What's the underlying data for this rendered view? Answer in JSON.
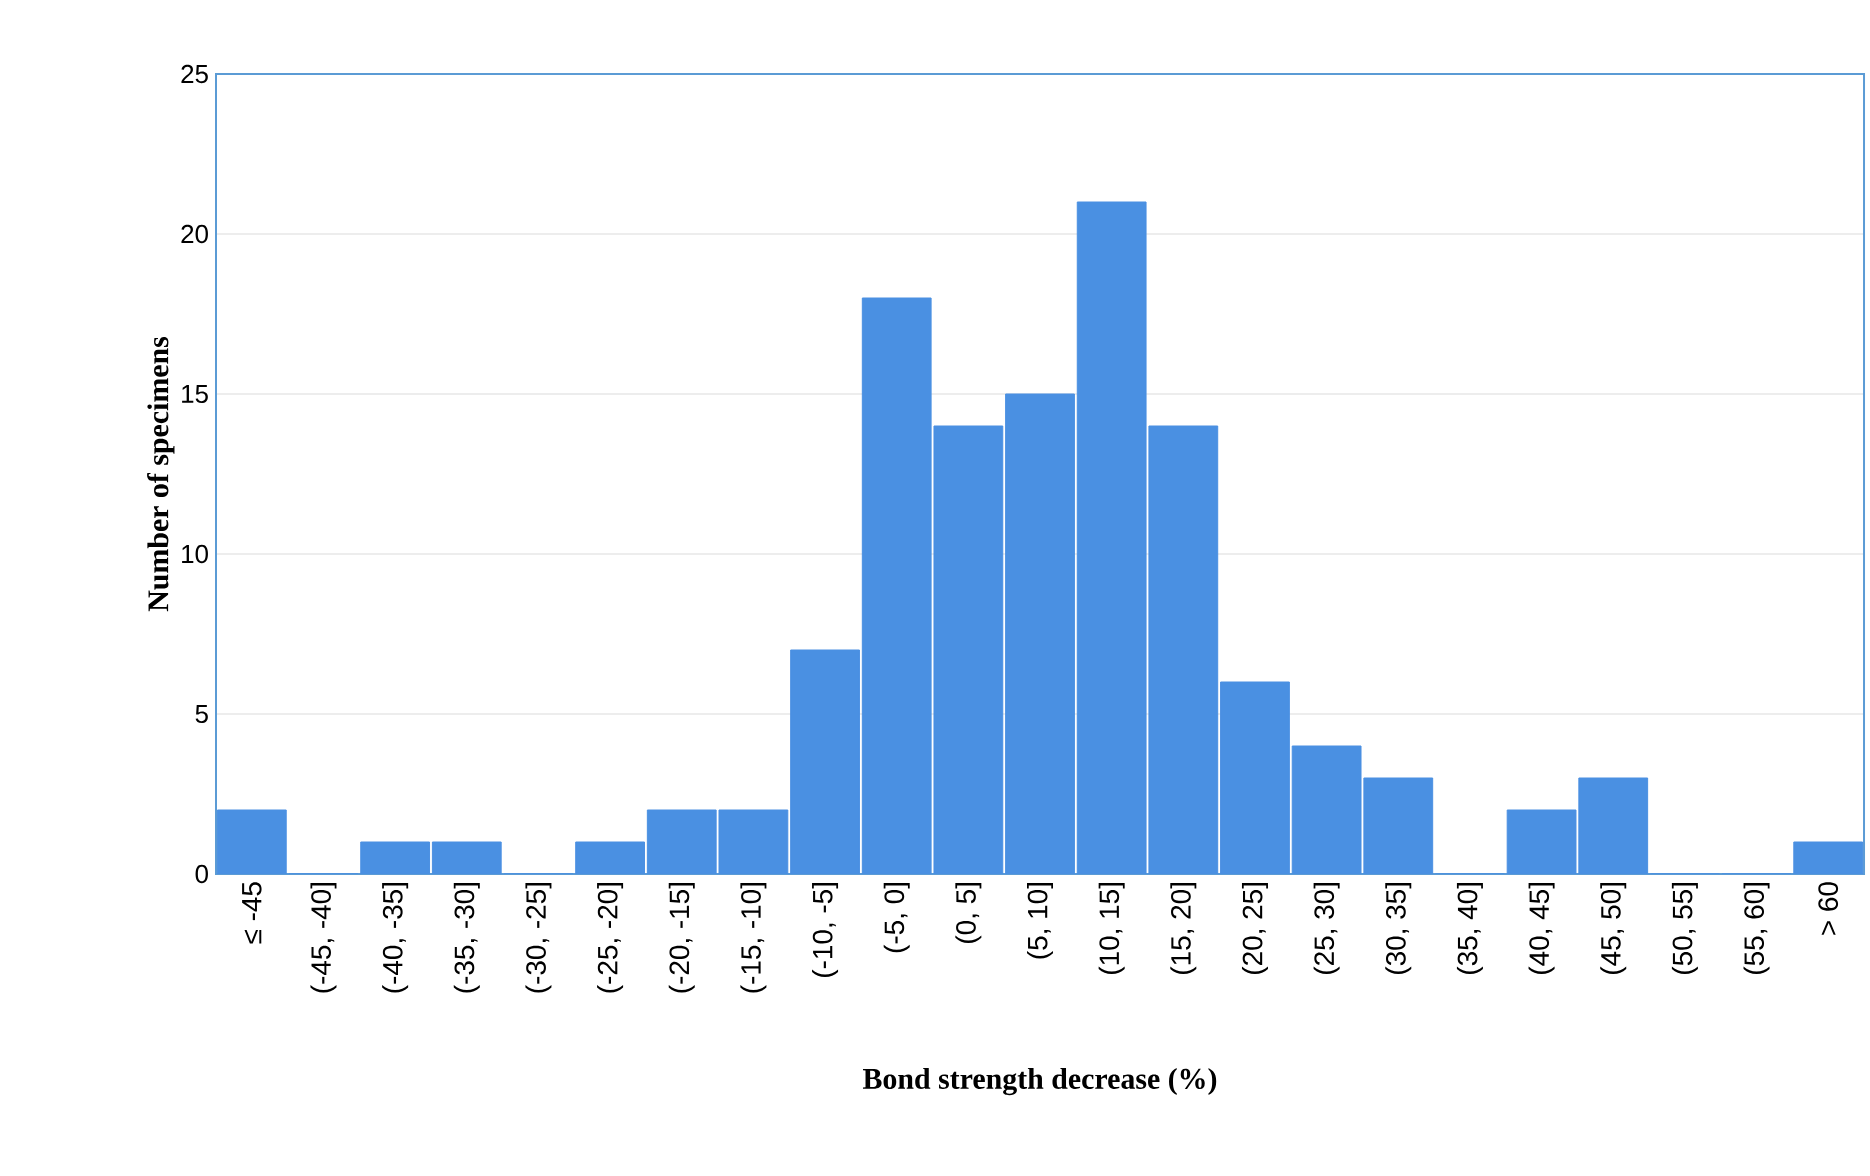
{
  "chart_data": {
    "type": "bar",
    "xlabel": "Bond strength decrease (%)",
    "ylabel": "Number of specimens",
    "categories": [
      "≤ -45",
      "(-45, -40]",
      "(-40, -35]",
      "(-35, -30]",
      "(-30, -25]",
      "(-25, -20]",
      "(-20, -15]",
      "(-15, -10]",
      "(-10, -5]",
      "(-5, 0]",
      "(0, 5]",
      "(5, 10]",
      "(10, 15]",
      "(15, 20]",
      "(20, 25]",
      "(25, 30]",
      "(30, 35]",
      "(35, 40]",
      "(40, 45]",
      "(45, 50]",
      "(50, 55]",
      "(55, 60]",
      "> 60"
    ],
    "values": [
      2,
      0,
      1,
      1,
      0,
      1,
      2,
      2,
      7,
      18,
      14,
      15,
      21,
      14,
      6,
      4,
      3,
      0,
      2,
      3,
      0,
      0,
      1
    ],
    "color": "#4a90e2",
    "ylim": [
      0,
      25
    ],
    "yticks": [
      0,
      5,
      10,
      15,
      20,
      25
    ],
    "grid": "y"
  }
}
